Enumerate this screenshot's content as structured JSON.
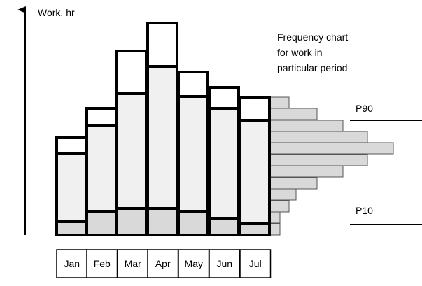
{
  "y_axis_label": "Work, hr",
  "caption_lines": [
    "Frequency chart",
    "for work in",
    "particular period"
  ],
  "p90_label": "P90",
  "p10_label": "P10",
  "months": [
    "Jan",
    "Feb",
    "Mar",
    "Apr",
    "May",
    "Jun",
    "Jul"
  ]
}
